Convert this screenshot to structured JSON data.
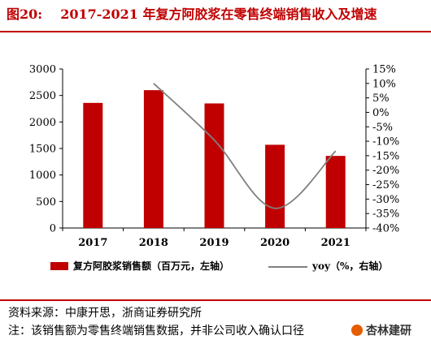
{
  "figure": {
    "number": "图20:",
    "title": "2017-2021 年复方阿胶浆在零售终端销售收入及增速"
  },
  "chart_data": {
    "type": "bar",
    "categories": [
      "2017",
      "2018",
      "2019",
      "2020",
      "2021"
    ],
    "series": [
      {
        "name": "复方阿胶浆销售额（百万元，左轴）",
        "type": "bar",
        "axis": "left",
        "values": [
          2360,
          2600,
          2350,
          1570,
          1360
        ],
        "color": "#c00000"
      },
      {
        "name": "yoy（%，右轴）",
        "type": "line",
        "axis": "right",
        "values": [
          null,
          10,
          -9.6,
          -33.2,
          -13.4
        ],
        "color": "#808080"
      }
    ],
    "y_left": {
      "lim": [
        0,
        3000
      ],
      "ticks": [
        "0",
        "500",
        "1000",
        "1500",
        "2000",
        "2500",
        "3000"
      ]
    },
    "y_right": {
      "lim": [
        -40,
        15
      ],
      "ticks": [
        "15%",
        "10%",
        "5%",
        "0%",
        "-5%",
        "-10%",
        "-15%",
        "-20%",
        "-25%",
        "-30%",
        "-35%",
        "-40%"
      ]
    },
    "legend_position": "bottom",
    "grid": false
  },
  "source": "资料来源：中康开思，浙商证券研究所",
  "note": "注：该销售额为零售终端销售数据，并非公司收入确认口径",
  "watermark": "杏林建研"
}
